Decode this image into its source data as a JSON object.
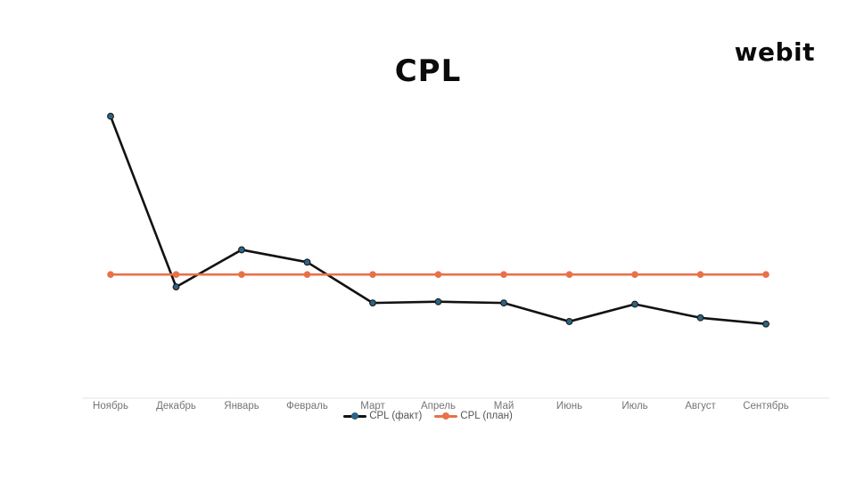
{
  "header": {
    "title": "CPL",
    "logo_text": "webit"
  },
  "chart_data": {
    "type": "line",
    "title": "CPL",
    "categories": [
      "Ноябрь",
      "Декабрь",
      "Январь",
      "Февраль",
      "Март",
      "Апрель",
      "Май",
      "Июнь",
      "Июль",
      "Август",
      "Сентябрь"
    ],
    "series": [
      {
        "name": "CPL (факт)",
        "line_color": "#121212",
        "marker_color": "#2d6485",
        "values": [
          228,
          90,
          120,
          110,
          77,
          78,
          77,
          62,
          76,
          65,
          60
        ]
      },
      {
        "name": "CPL (план)",
        "line_color": "#e8714a",
        "marker_color": "#e8714a",
        "values": [
          100,
          100,
          100,
          100,
          100,
          100,
          100,
          100,
          100,
          100,
          100
        ]
      }
    ],
    "xlabel": "",
    "ylabel": "",
    "ylim": [
      0,
      250
    ],
    "y_axis_visible": false,
    "grid": false,
    "legend_position": "bottom",
    "axis_color": "#e3e3e3",
    "label_color": "#757575"
  }
}
